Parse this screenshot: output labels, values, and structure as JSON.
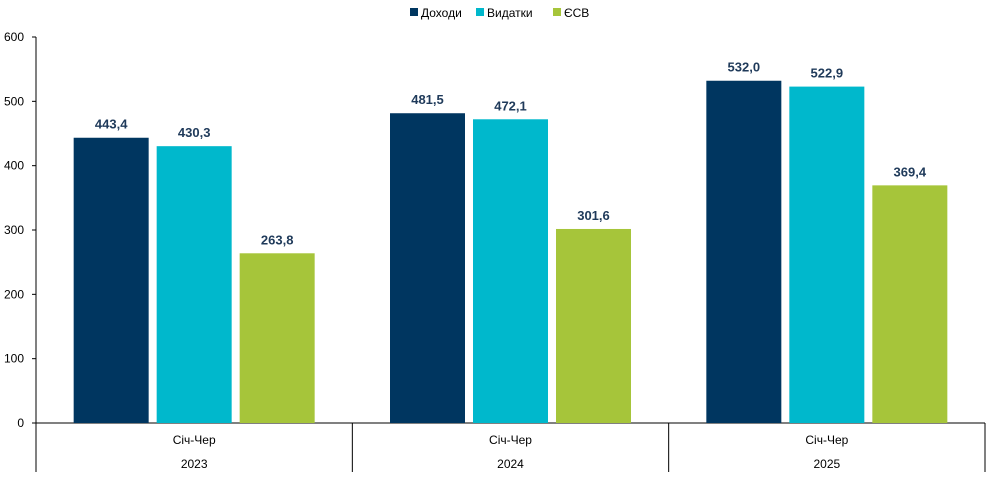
{
  "chart_data": {
    "type": "bar",
    "title": "",
    "xlabel": "",
    "ylabel": "",
    "ylim": [
      0,
      600
    ],
    "yticks": [
      0,
      100,
      200,
      300,
      400,
      500,
      600
    ],
    "grid": false,
    "legend_position": "top-center",
    "groups": [
      {
        "period": "Січ-Чер",
        "year": "2023"
      },
      {
        "period": "Січ-Чер",
        "year": "2024"
      },
      {
        "period": "Січ-Чер",
        "year": "2025"
      }
    ],
    "series": [
      {
        "name": "Доходи",
        "color": "#003660",
        "values": [
          443.4,
          481.5,
          532.0
        ],
        "labels": [
          "443,4",
          "481,5",
          "532,0"
        ]
      },
      {
        "name": "Видатки",
        "color": "#00b8cc",
        "values": [
          430.3,
          472.1,
          522.9
        ],
        "labels": [
          "430,3",
          "472,1",
          "522,9"
        ]
      },
      {
        "name": "ЄСВ",
        "color": "#a6c53a",
        "values": [
          263.8,
          301.6,
          369.4
        ],
        "labels": [
          "263,8",
          "301,6",
          "369,4"
        ]
      }
    ]
  }
}
